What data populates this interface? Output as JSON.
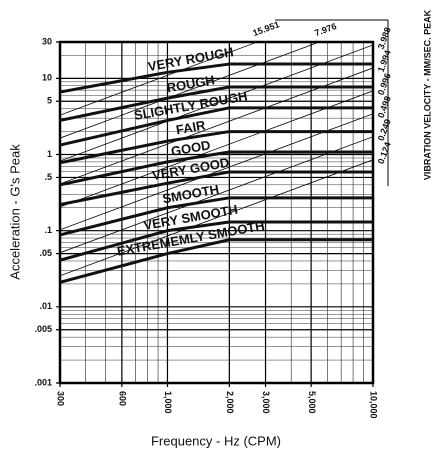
{
  "chart_data": {
    "type": "line",
    "xlabel": "Frequency - Hz (CPM)",
    "ylabel": "Acceleration - G's Peak",
    "y2label": "VIBRATION VELOCITY - MM/SEC. PEAK",
    "log_x": true,
    "log_y": true,
    "grid": true,
    "xlim": [
      300,
      10000
    ],
    "ylim": [
      0.001,
      30
    ],
    "xticks": [
      300,
      600,
      {
        "value": 1000,
        "label": "1,000"
      },
      {
        "value": 2000,
        "label": "2,000"
      },
      {
        "value": 3000,
        "label": "3,000"
      },
      {
        "value": 5000,
        "label": "5,000"
      },
      {
        "value": 10000,
        "label": "10,000"
      }
    ],
    "yticks": [
      {
        "value": 0.001,
        "label": ".001"
      },
      {
        "value": 0.005,
        "label": ".005"
      },
      {
        "value": 0.01,
        "label": ".01"
      },
      {
        "value": 0.05,
        "label": ".05"
      },
      {
        "value": 0.1,
        "label": ".1"
      },
      {
        "value": 0.5,
        "label": ".5"
      },
      1,
      5,
      10,
      30
    ],
    "velocity_ticks": [
      15.951,
      7.976,
      3.988,
      1.994,
      0.996,
      0.498,
      0.249,
      0.124
    ],
    "x": [
      300,
      1000,
      2000,
      10000
    ],
    "series": [
      {
        "name": "VERY ROUGH",
        "color": "#111111",
        "values": [
          6.6,
          12,
          15.4,
          15.4
        ]
      },
      {
        "name": "ROUGH",
        "color": "#111111",
        "values": [
          2.8,
          5.5,
          7.7,
          7.7
        ]
      },
      {
        "name": "SLIGHTLY ROUGH",
        "color": "#111111",
        "values": [
          1.33,
          2.8,
          4.1,
          4.1
        ]
      },
      {
        "name": "FAIR",
        "color": "#111111",
        "values": [
          0.78,
          1.5,
          2.0,
          2.0
        ]
      },
      {
        "name": "GOOD",
        "color": "#111111",
        "values": [
          0.4,
          0.8,
          1.08,
          1.08
        ]
      },
      {
        "name": "VERY GOOD",
        "color": "#111111",
        "values": [
          0.22,
          0.42,
          0.59,
          0.59
        ]
      },
      {
        "name": "SMOOTH",
        "color": "#111111",
        "values": [
          0.088,
          0.2,
          0.27,
          0.27
        ]
      },
      {
        "name": "VERY SMOOTH",
        "color": "#111111",
        "values": [
          0.041,
          0.1,
          0.13,
          0.13
        ]
      },
      {
        "name": "EXTREMEMLY SMOOTH",
        "color": "#111111",
        "values": [
          0.021,
          0.05,
          0.076,
          0.076
        ]
      }
    ]
  }
}
